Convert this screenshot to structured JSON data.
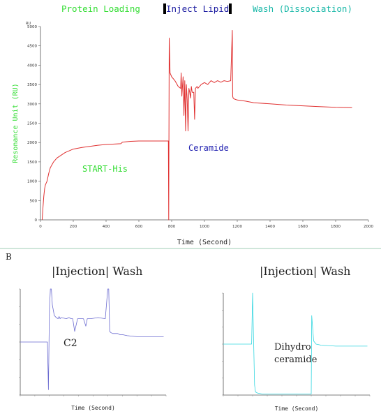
{
  "panel_a": {
    "phases": {
      "loading": "Protein Loading",
      "inject": "Inject Lipid",
      "wash": "Wash (Dissociation)"
    },
    "ru_unit": "RU",
    "annotations": {
      "start_his": "START-His",
      "ceramide": "Ceramide"
    },
    "colors": {
      "loading": "#33dd33",
      "inject": "#1a1aa0",
      "wash": "#19b8a8",
      "trace": "#e03030"
    }
  },
  "panel_b": {
    "letter": "B",
    "left_title": "|Injection| Wash",
    "right_title": "|Injection| Wash",
    "left_label": "C2",
    "right_label_line1": "Dihydro",
    "right_label_line2": "ceramide",
    "colors": {
      "left_trace": "#6a6ad0",
      "right_trace": "#33d6e0"
    }
  },
  "chart_data": [
    {
      "type": "line",
      "title": "",
      "xlabel": "Time (Second)",
      "ylabel": "Resonance Unit (RU)",
      "xlim": [
        0,
        2000
      ],
      "ylim": [
        0,
        5000
      ],
      "xticks": [
        0,
        200,
        400,
        600,
        800,
        1000,
        1200,
        1400,
        1600,
        1800,
        2000
      ],
      "yticks": [
        0,
        500,
        1000,
        1500,
        2000,
        2500,
        3000,
        3500,
        4000,
        4500,
        5000
      ],
      "series": [
        {
          "x": [
            10,
            15,
            20,
            25,
            30,
            40,
            50,
            60,
            80,
            100,
            150,
            200,
            250,
            300,
            350,
            400,
            450,
            490,
            500,
            550,
            600,
            700,
            780,
            782,
            785,
            790,
            800,
            820,
            840,
            855,
            858,
            862,
            870,
            875,
            880,
            885,
            890,
            895,
            900,
            905,
            910,
            915,
            920,
            925,
            935,
            940,
            945,
            955,
            960,
            970,
            980,
            1000,
            1020,
            1040,
            1060,
            1080,
            1100,
            1120,
            1140,
            1160,
            1170,
            1172,
            1175,
            1180,
            1200,
            1250,
            1300,
            1400,
            1500,
            1600,
            1700,
            1800,
            1900
          ],
          "y": [
            0,
            300,
            600,
            800,
            900,
            1000,
            1200,
            1350,
            1500,
            1600,
            1740,
            1830,
            1870,
            1900,
            1930,
            1950,
            1960,
            1970,
            2010,
            2030,
            2040,
            2040,
            2040,
            0,
            4700,
            3800,
            3700,
            3600,
            3450,
            3400,
            3800,
            3200,
            3700,
            2700,
            3600,
            2300,
            3500,
            3100,
            2300,
            3400,
            3300,
            3150,
            3450,
            3300,
            3300,
            2600,
            3400,
            3450,
            3400,
            3450,
            3500,
            3550,
            3500,
            3600,
            3550,
            3600,
            3560,
            3600,
            3580,
            3600,
            4900,
            3200,
            3150,
            3130,
            3100,
            3070,
            3030,
            3000,
            2970,
            2950,
            2930,
            2910,
            2900
          ]
        }
      ]
    },
    {
      "type": "line",
      "title": "",
      "xlabel": "Time (Second)",
      "ylabel": "",
      "xlim": [
        0,
        300
      ],
      "ylim": [
        0,
        100
      ],
      "series": [
        {
          "x": [
            0,
            5,
            30,
            50,
            56,
            58,
            60,
            62,
            64,
            66,
            70,
            74,
            78,
            80,
            82,
            84,
            95,
            100,
            105,
            108,
            112,
            118,
            130,
            135,
            138,
            145,
            160,
            175,
            180,
            182,
            184,
            186,
            190,
            200,
            205,
            210,
            220,
            240,
            260,
            280,
            295
          ],
          "y": [
            50,
            50,
            50,
            50,
            50,
            5,
            80,
            100,
            100,
            85,
            75,
            73,
            72,
            74,
            72,
            73,
            72,
            73,
            72,
            72,
            60,
            72,
            72,
            65,
            72,
            72,
            73,
            72,
            100,
            100,
            60,
            59,
            58,
            58,
            57,
            57,
            56,
            55,
            55,
            55,
            55
          ]
        }
      ]
    },
    {
      "type": "line",
      "title": "",
      "xlabel": "Time (Second)",
      "ylabel": "",
      "xlim": [
        0,
        300
      ],
      "ylim": [
        0,
        100
      ],
      "series": [
        {
          "x": [
            0,
            50,
            58,
            60,
            64,
            66,
            70,
            80,
            100,
            120,
            140,
            160,
            180,
            181,
            185,
            190,
            200,
            230,
            260,
            295
          ],
          "y": [
            50,
            50,
            50,
            100,
            10,
            3,
            2,
            1,
            1,
            1,
            1,
            1,
            1,
            78,
            53,
            50,
            49,
            48,
            48,
            48
          ]
        }
      ]
    }
  ]
}
